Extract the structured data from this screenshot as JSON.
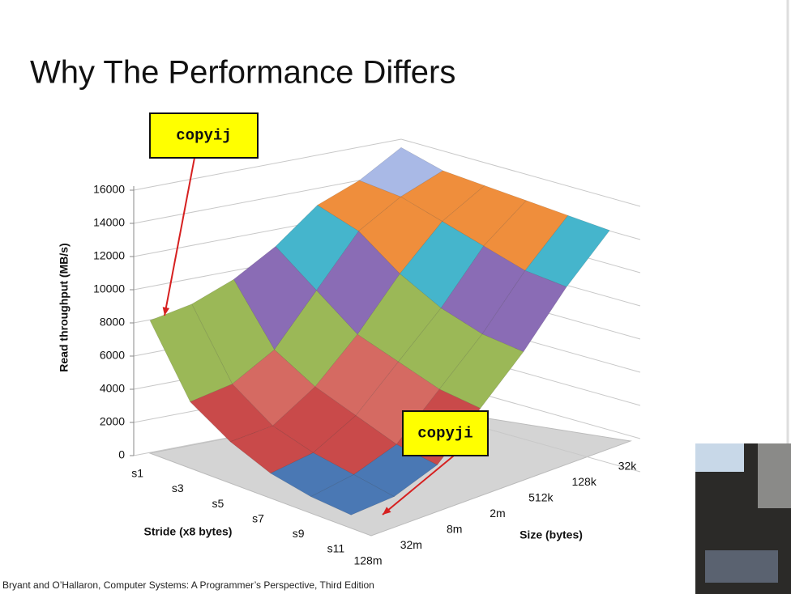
{
  "chart_data": {
    "type": "surface",
    "title": "Why The Performance Differs",
    "y_label": "Read throughput (MB/s)",
    "stride_label": "Stride (x8 bytes)",
    "size_label": "Size (bytes)",
    "strides": [
      "s1",
      "s3",
      "s5",
      "s7",
      "s9",
      "s11"
    ],
    "sizes": [
      "128m",
      "32m",
      "8m",
      "2m",
      "512k",
      "128k",
      "32k"
    ],
    "values": [
      [
        8000,
        8500,
        9500,
        11000,
        13000,
        14000,
        15500
      ],
      [
        4000,
        4500,
        6000,
        9000,
        12000,
        13500,
        14500
      ],
      [
        2500,
        2800,
        4500,
        7000,
        10000,
        12500,
        14000
      ],
      [
        1500,
        2000,
        3500,
        6000,
        8500,
        11500,
        13500
      ],
      [
        1000,
        1500,
        2500,
        5000,
        7500,
        10500,
        13000
      ],
      [
        800,
        1000,
        2000,
        4500,
        7000,
        10000,
        12500
      ]
    ],
    "colors": [
      "#4a78b4",
      "#c94a4a",
      "#d56a62",
      "#9bb857",
      "#8a6cb5",
      "#45b5cc",
      "#ef8e3c",
      "#a9b9e6"
    ],
    "ylim": [
      0,
      16000
    ],
    "yticks": [
      0,
      2000,
      4000,
      6000,
      8000,
      10000,
      12000,
      14000,
      16000
    ],
    "grid": true,
    "annotations": [
      "copyij",
      "copyji"
    ]
  },
  "footer": "Bryant and O’Hallaron, Computer Systems: A Programmer’s Perspective, Third Edition"
}
